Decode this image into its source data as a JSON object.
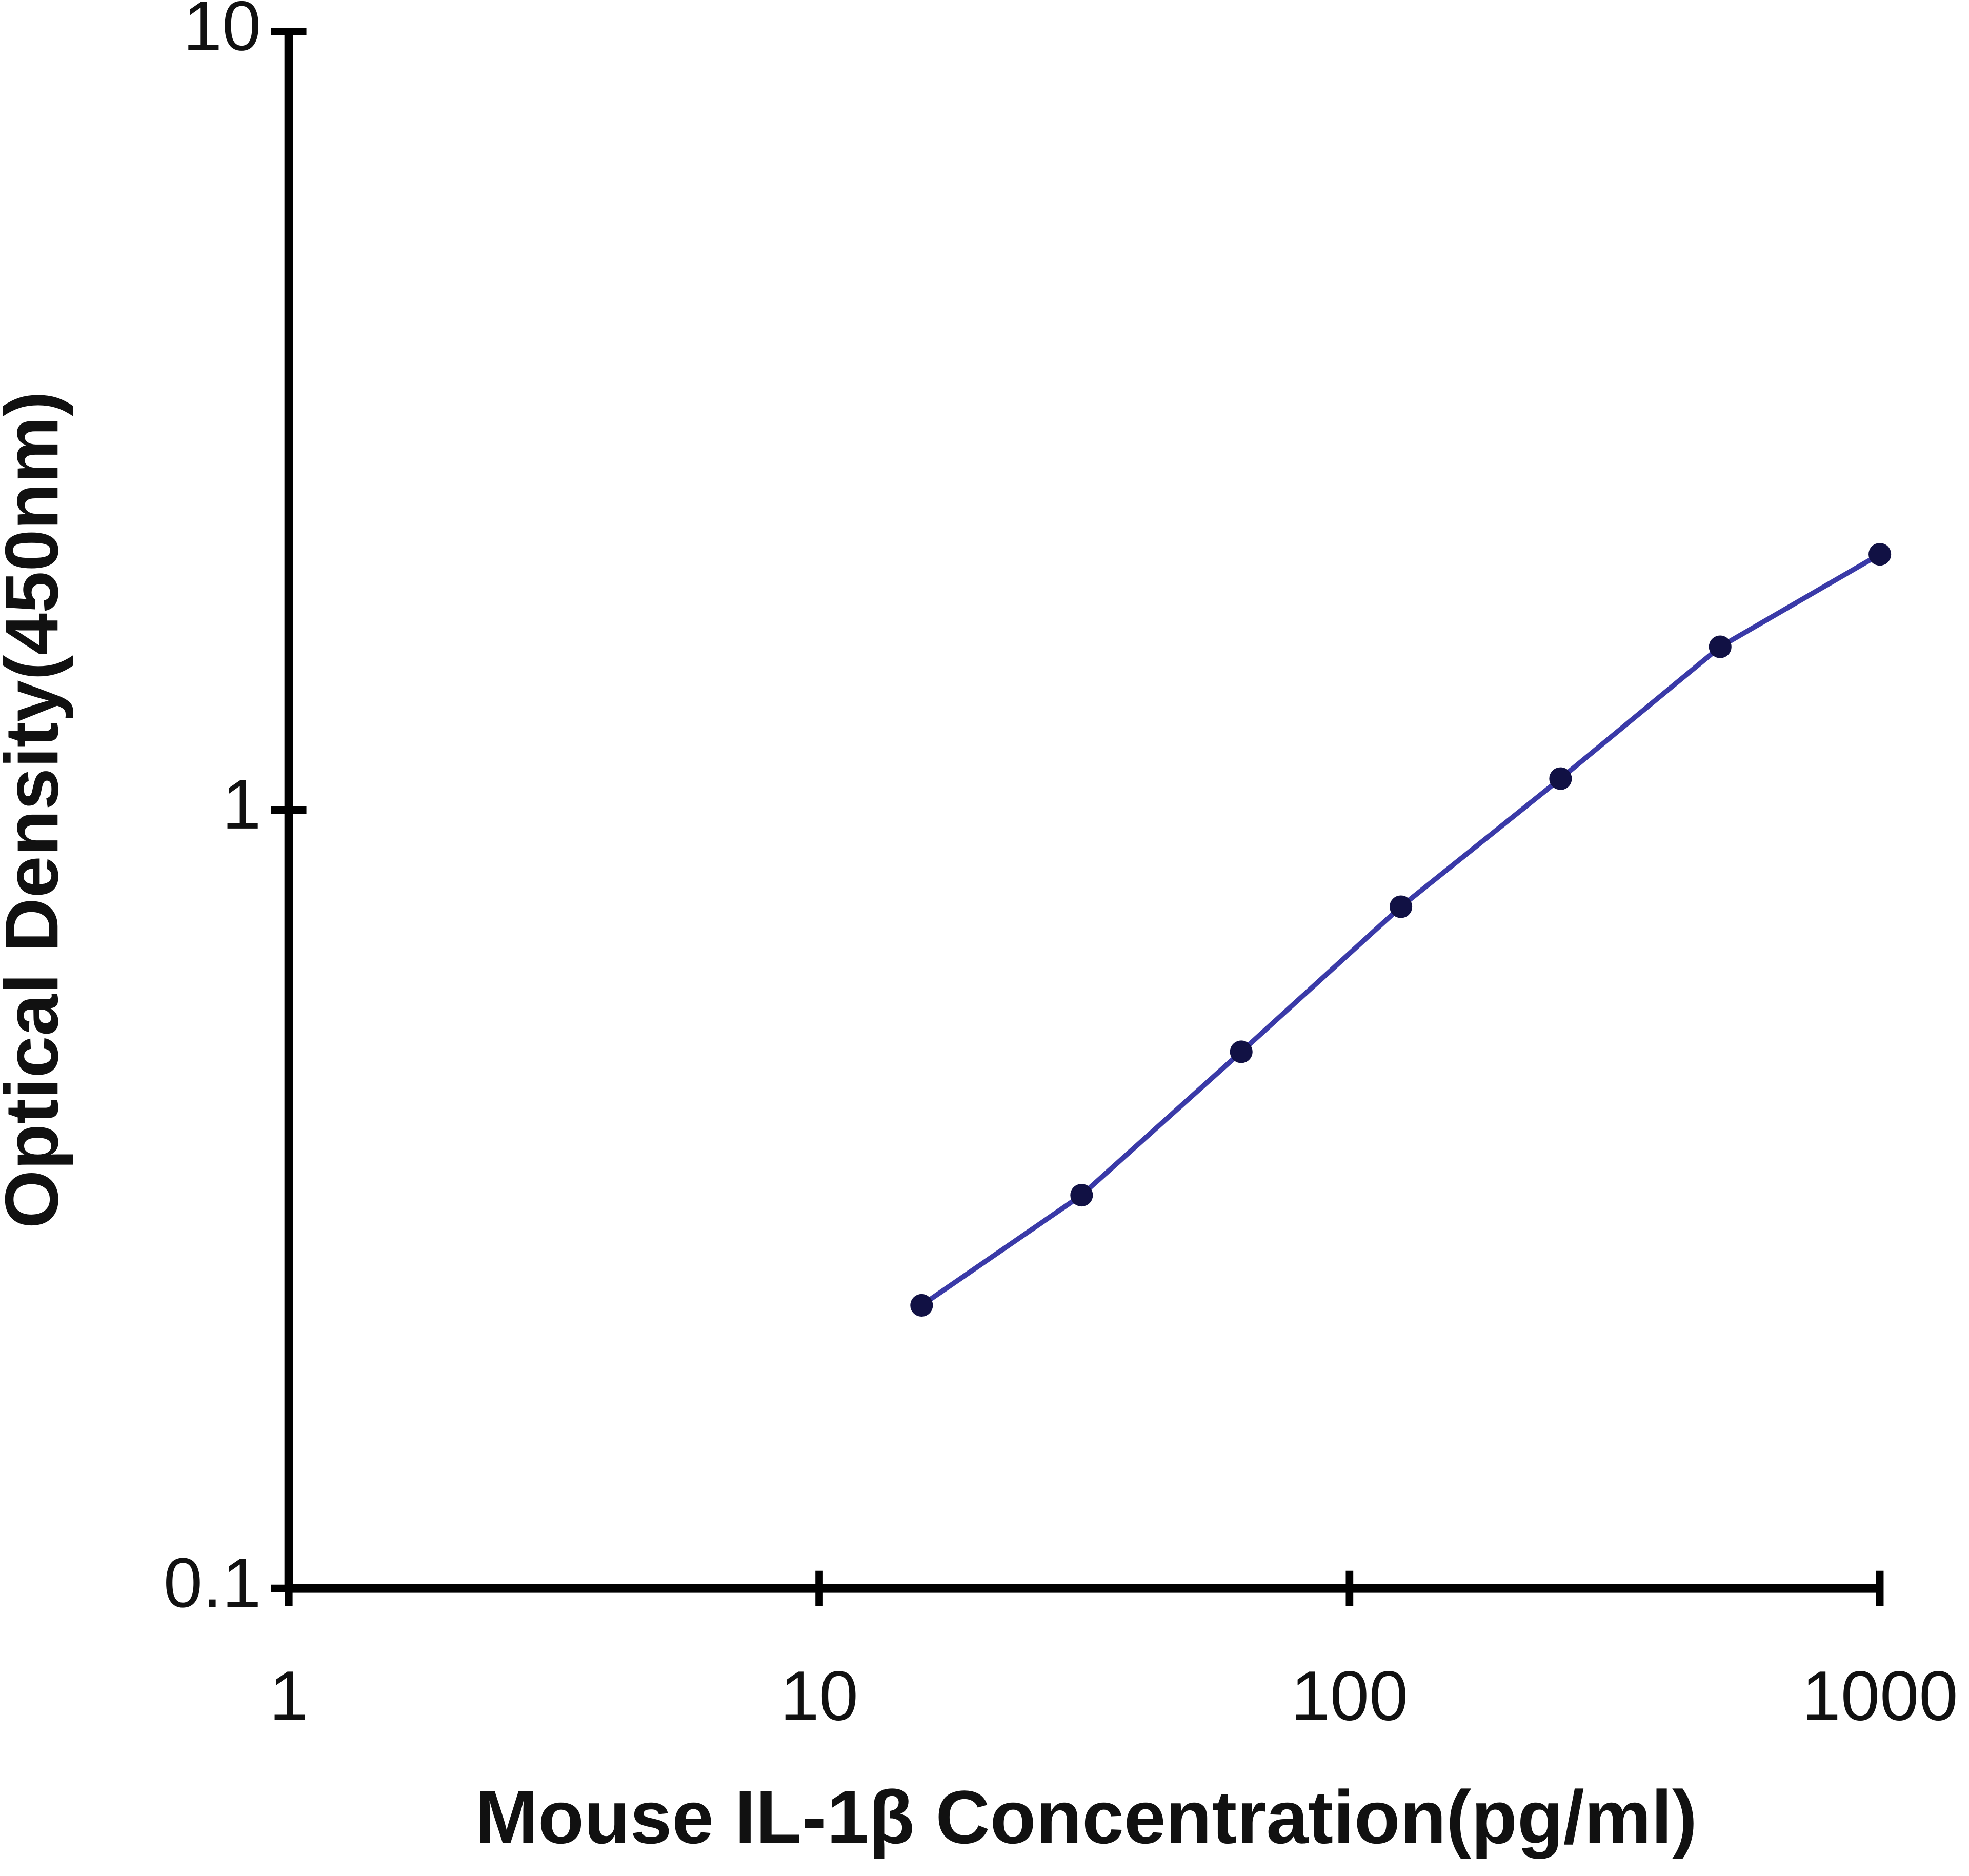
{
  "chart_data": {
    "type": "line",
    "x_label": "Mouse IL-1β Concentration(pg/ml)",
    "y_label": "Optical Density(450nm)",
    "x": [
      15.6,
      31.25,
      62.5,
      125,
      250,
      500,
      1000
    ],
    "series": [
      {
        "color": "#3a3aa8",
        "marker_color": "#111144",
        "values": [
          0.231,
          0.32,
          0.489,
          0.751,
          1.097,
          1.62,
          2.13
        ]
      }
    ],
    "xlim": [
      1,
      1000
    ],
    "ylim": [
      0.1,
      10
    ],
    "xticks": [
      1,
      10,
      100,
      1000
    ],
    "yticks": [
      0.1,
      1,
      10
    ],
    "x_log": true,
    "y_log": true
  }
}
